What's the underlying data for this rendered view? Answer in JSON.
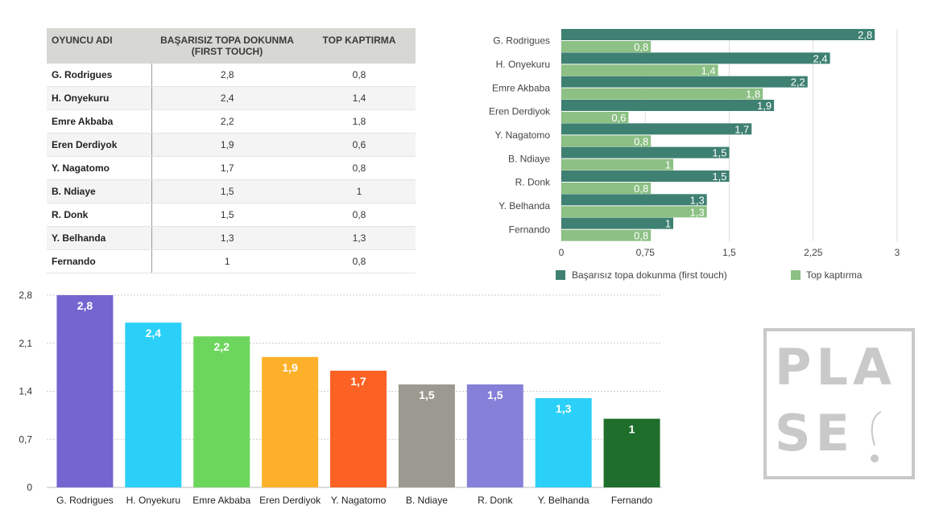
{
  "table": {
    "headers": [
      "OYUNCU ADI",
      "BAŞARISIZ TOPA DOKUNMA\n(FIRST TOUCH)",
      "TOP KAPTIRMA"
    ],
    "rows": [
      [
        "G. Rodrigues",
        "2,8",
        "0,8"
      ],
      [
        "H. Onyekuru",
        "2,4",
        "1,4"
      ],
      [
        "Emre Akbaba",
        "2,2",
        "1,8"
      ],
      [
        "Eren Derdiyok",
        "1,9",
        "0,6"
      ],
      [
        "Y. Nagatomo",
        "1,7",
        "0,8"
      ],
      [
        "B. Ndiaye",
        "1,5",
        "1"
      ],
      [
        "R. Donk",
        "1,5",
        "0,8"
      ],
      [
        "Y. Belhanda",
        "1,3",
        "1,3"
      ],
      [
        "Fernando",
        "1",
        "0,8"
      ]
    ]
  },
  "chart_data": [
    {
      "type": "bar",
      "orientation": "horizontal",
      "categories": [
        "G. Rodrigues",
        "H. Onyekuru",
        "Emre Akbaba",
        "Eren Derdiyok",
        "Y. Nagatomo",
        "B. Ndiaye",
        "R. Donk",
        "Y. Belhanda",
        "Fernando"
      ],
      "series": [
        {
          "name": "Başarısız topa dokunma (first touch)",
          "color": "#3e8072",
          "values": [
            2.8,
            2.4,
            2.2,
            1.9,
            1.7,
            1.5,
            1.5,
            1.3,
            1
          ]
        },
        {
          "name": "Top kaptırma",
          "color": "#8cc084",
          "values": [
            0.8,
            1.4,
            1.8,
            0.6,
            0.8,
            1,
            0.8,
            1.3,
            0.8
          ]
        }
      ],
      "xlim": [
        0,
        3
      ],
      "xticks": [
        "0",
        "0,75",
        "1,5",
        "2,25",
        "3"
      ],
      "grid": true,
      "legend": "bottom"
    },
    {
      "type": "bar",
      "categories": [
        "G. Rodrigues",
        "H. Onyekuru",
        "Emre Akbaba",
        "Eren Derdiyok",
        "Y. Nagatomo",
        "B. Ndiaye",
        "R. Donk",
        "Y. Belhanda",
        "Fernando"
      ],
      "values": [
        2.8,
        2.4,
        2.2,
        1.9,
        1.7,
        1.5,
        1.5,
        1.3,
        1
      ],
      "colors": [
        "#7465d0",
        "#2bd0f8",
        "#6cd65c",
        "#fdb12a",
        "#fc6224",
        "#9c9a90",
        "#8580d8",
        "#2bd0f8",
        "#1f6e2c"
      ],
      "ylim": [
        0,
        2.8
      ],
      "yticks": [
        "0",
        "0,7",
        "1,4",
        "2,1",
        "2,8"
      ],
      "grid": true
    }
  ],
  "watermark": {
    "line1": "PLA",
    "line2": "SE"
  }
}
